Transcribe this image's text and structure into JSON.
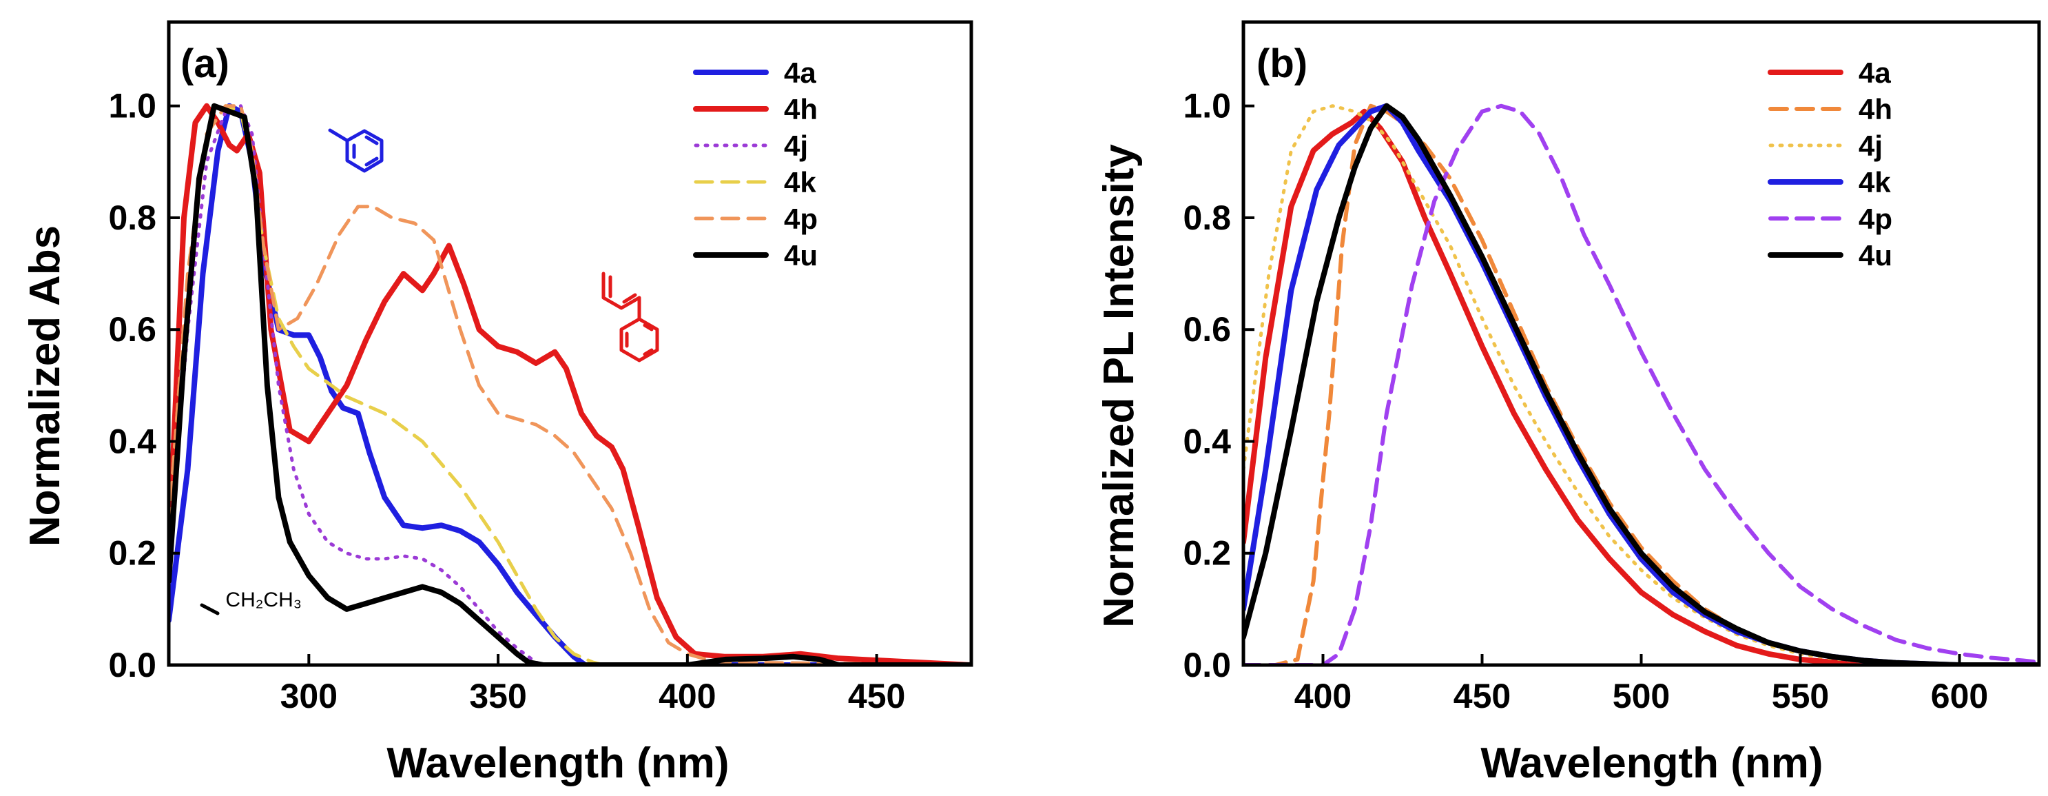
{
  "chart_data": [
    {
      "panel": "(a)",
      "type": "line",
      "title": "",
      "xlabel": "Wavelength (nm)",
      "ylabel": "Normalized Abs",
      "xlim": [
        263,
        475
      ],
      "ylim": [
        0,
        1.15
      ],
      "xticks": [
        300,
        350,
        400,
        450
      ],
      "yticks": [
        0.0,
        0.2,
        0.4,
        0.6,
        0.8,
        1.0
      ],
      "ytick_labels": [
        "0.0",
        "0.2",
        "0.4",
        "0.6",
        "0.8",
        "1.0"
      ],
      "grid": false,
      "legend_position": "top-right",
      "annotations": [
        {
          "text": "CH₂CH₃",
          "x": 278,
          "y": 0.1
        }
      ],
      "series": [
        {
          "name": "4a",
          "color": "#1f1fe0",
          "style": "solid",
          "width": 8,
          "x": [
            263,
            268,
            272,
            276,
            279,
            282,
            285,
            288,
            292,
            296,
            300,
            303,
            306,
            309,
            313,
            316,
            320,
            325,
            330,
            335,
            340,
            345,
            350,
            355,
            360,
            365,
            370,
            373,
            378,
            385,
            400,
            420,
            440,
            475
          ],
          "y": [
            0.08,
            0.35,
            0.7,
            0.92,
            1.0,
            0.99,
            0.9,
            0.72,
            0.6,
            0.59,
            0.59,
            0.55,
            0.49,
            0.46,
            0.45,
            0.38,
            0.3,
            0.25,
            0.245,
            0.25,
            0.24,
            0.22,
            0.18,
            0.13,
            0.09,
            0.05,
            0.015,
            0.0,
            0.0,
            0.0,
            0.0,
            0.0,
            0.0,
            0.0
          ]
        },
        {
          "name": "4h",
          "color": "#e31a1a",
          "style": "solid",
          "width": 8,
          "x": [
            263,
            267,
            270,
            273,
            276,
            279,
            281,
            284,
            287,
            290,
            295,
            300,
            305,
            310,
            315,
            320,
            325,
            330,
            333,
            337,
            341,
            345,
            350,
            355,
            360,
            365,
            368,
            372,
            376,
            380,
            383,
            387,
            392,
            397,
            402,
            410,
            420,
            430,
            440,
            475
          ],
          "y": [
            0.2,
            0.8,
            0.97,
            1.0,
            0.97,
            0.93,
            0.92,
            0.95,
            0.88,
            0.6,
            0.42,
            0.4,
            0.45,
            0.5,
            0.58,
            0.65,
            0.7,
            0.67,
            0.7,
            0.75,
            0.68,
            0.6,
            0.57,
            0.56,
            0.54,
            0.56,
            0.53,
            0.45,
            0.41,
            0.39,
            0.35,
            0.25,
            0.12,
            0.05,
            0.02,
            0.015,
            0.015,
            0.02,
            0.012,
            0.0
          ]
        },
        {
          "name": "4j",
          "color": "#9b3ad6",
          "style": "dotted",
          "width": 5,
          "x": [
            263,
            268,
            273,
            278,
            282,
            285,
            288,
            292,
            296,
            300,
            305,
            310,
            315,
            320,
            325,
            330,
            335,
            340,
            345,
            350,
            355,
            360,
            362,
            475
          ],
          "y": [
            0.2,
            0.6,
            0.9,
            0.99,
            1.0,
            0.95,
            0.75,
            0.5,
            0.35,
            0.27,
            0.22,
            0.2,
            0.19,
            0.19,
            0.195,
            0.19,
            0.17,
            0.14,
            0.1,
            0.06,
            0.03,
            0.005,
            0.0,
            0.0
          ]
        },
        {
          "name": "4k",
          "color": "#e8cf4a",
          "style": "dashed",
          "width": 5,
          "x": [
            263,
            268,
            273,
            278,
            282,
            285,
            288,
            292,
            296,
            300,
            310,
            320,
            330,
            340,
            350,
            355,
            360,
            365,
            370,
            375,
            378,
            475
          ],
          "y": [
            0.25,
            0.7,
            0.95,
            1.0,
            0.99,
            0.9,
            0.75,
            0.62,
            0.57,
            0.53,
            0.48,
            0.45,
            0.4,
            0.32,
            0.22,
            0.16,
            0.1,
            0.05,
            0.02,
            0.005,
            0.0,
            0.0
          ]
        },
        {
          "name": "4p",
          "color": "#f0955a",
          "style": "dashed",
          "width": 5,
          "x": [
            263,
            268,
            273,
            278,
            282,
            285,
            288,
            292,
            297,
            302,
            308,
            313,
            317,
            322,
            328,
            333,
            340,
            345,
            350,
            355,
            360,
            365,
            370,
            375,
            380,
            385,
            390,
            395,
            400,
            405,
            410,
            475
          ],
          "y": [
            0.25,
            0.7,
            0.95,
            1.0,
            1.0,
            0.92,
            0.75,
            0.6,
            0.62,
            0.68,
            0.77,
            0.82,
            0.82,
            0.8,
            0.79,
            0.76,
            0.6,
            0.5,
            0.45,
            0.44,
            0.43,
            0.41,
            0.38,
            0.33,
            0.28,
            0.2,
            0.1,
            0.04,
            0.02,
            0.01,
            0.005,
            0.0
          ]
        },
        {
          "name": "4u",
          "color": "#000000",
          "style": "solid",
          "width": 8,
          "x": [
            263,
            267,
            271,
            275,
            279,
            283,
            286,
            289,
            292,
            295,
            300,
            305,
            310,
            315,
            320,
            325,
            330,
            335,
            340,
            345,
            350,
            355,
            358,
            362,
            400,
            410,
            420,
            428,
            435,
            440,
            475
          ],
          "y": [
            0.15,
            0.55,
            0.87,
            1.0,
            0.99,
            0.98,
            0.85,
            0.5,
            0.3,
            0.22,
            0.16,
            0.12,
            0.1,
            0.11,
            0.12,
            0.13,
            0.14,
            0.13,
            0.11,
            0.08,
            0.05,
            0.02,
            0.005,
            0.0,
            0.0,
            0.01,
            0.012,
            0.015,
            0.01,
            0.0,
            0.0
          ]
        }
      ]
    },
    {
      "panel": "(b)",
      "type": "line",
      "title": "",
      "xlabel": "Wavelength (nm)",
      "ylabel": "Normalized PL Intensity",
      "xlim": [
        375,
        625
      ],
      "ylim": [
        0,
        1.15
      ],
      "xticks": [
        400,
        450,
        500,
        550,
        600
      ],
      "yticks": [
        0.0,
        0.2,
        0.4,
        0.6,
        0.8,
        1.0
      ],
      "ytick_labels": [
        "0.0",
        "0.2",
        "0.4",
        "0.6",
        "0.8",
        "1.0"
      ],
      "grid": false,
      "legend_position": "top-right",
      "series": [
        {
          "name": "4a",
          "color": "#e31a1a",
          "style": "solid",
          "width": 8,
          "x": [
            375,
            382,
            390,
            397,
            403,
            409,
            413,
            418,
            425,
            432,
            440,
            450,
            460,
            470,
            480,
            490,
            500,
            510,
            520,
            530,
            540,
            550,
            560,
            570,
            580,
            600,
            625
          ],
          "y": [
            0.22,
            0.55,
            0.82,
            0.92,
            0.95,
            0.97,
            0.99,
            0.96,
            0.9,
            0.8,
            0.7,
            0.57,
            0.45,
            0.35,
            0.26,
            0.19,
            0.13,
            0.09,
            0.06,
            0.035,
            0.02,
            0.01,
            0.005,
            0.002,
            0.0,
            0.0,
            0.0
          ]
        },
        {
          "name": "4h",
          "color": "#f0883a",
          "style": "dashed",
          "width": 6,
          "x": [
            375,
            385,
            392,
            397,
            402,
            406,
            410,
            415,
            420,
            425,
            432,
            440,
            450,
            460,
            470,
            480,
            490,
            500,
            510,
            520,
            530,
            540,
            550,
            560,
            570,
            580,
            590,
            600,
            625
          ],
          "y": [
            0.0,
            0.0,
            0.01,
            0.15,
            0.45,
            0.75,
            0.93,
            1.0,
            0.99,
            0.97,
            0.93,
            0.87,
            0.76,
            0.63,
            0.5,
            0.39,
            0.29,
            0.21,
            0.15,
            0.1,
            0.065,
            0.04,
            0.025,
            0.015,
            0.008,
            0.004,
            0.002,
            0.001,
            0.0
          ]
        },
        {
          "name": "4j",
          "color": "#f0c24a",
          "style": "dotted",
          "width": 5,
          "x": [
            375,
            383,
            390,
            397,
            403,
            410,
            416,
            422,
            430,
            440,
            450,
            460,
            470,
            480,
            490,
            500,
            510,
            520,
            530,
            540,
            550,
            560,
            570,
            580,
            600,
            625
          ],
          "y": [
            0.35,
            0.7,
            0.92,
            0.99,
            1.0,
            0.99,
            0.97,
            0.93,
            0.85,
            0.75,
            0.62,
            0.5,
            0.4,
            0.31,
            0.23,
            0.17,
            0.12,
            0.085,
            0.055,
            0.035,
            0.02,
            0.012,
            0.006,
            0.003,
            0.0,
            0.0
          ]
        },
        {
          "name": "4k",
          "color": "#1f1fe0",
          "style": "solid",
          "width": 8,
          "x": [
            375,
            382,
            390,
            398,
            405,
            410,
            415,
            420,
            425,
            430,
            440,
            450,
            460,
            470,
            480,
            490,
            500,
            510,
            520,
            530,
            540,
            550,
            560,
            570,
            580,
            600,
            625
          ],
          "y": [
            0.1,
            0.35,
            0.67,
            0.85,
            0.93,
            0.96,
            0.99,
            1.0,
            0.97,
            0.92,
            0.83,
            0.72,
            0.6,
            0.48,
            0.37,
            0.27,
            0.19,
            0.13,
            0.09,
            0.06,
            0.04,
            0.025,
            0.015,
            0.008,
            0.004,
            0.0,
            0.0
          ]
        },
        {
          "name": "4p",
          "color": "#a040f0",
          "style": "dashed",
          "width": 6,
          "x": [
            375,
            395,
            400,
            405,
            410,
            415,
            420,
            428,
            435,
            442,
            450,
            456,
            462,
            468,
            475,
            482,
            490,
            500,
            510,
            520,
            530,
            540,
            550,
            560,
            570,
            580,
            590,
            600,
            610,
            620,
            625
          ],
          "y": [
            0.0,
            0.0,
            0.0,
            0.02,
            0.1,
            0.25,
            0.45,
            0.68,
            0.83,
            0.92,
            0.99,
            1.0,
            0.99,
            0.95,
            0.87,
            0.77,
            0.68,
            0.56,
            0.45,
            0.35,
            0.27,
            0.2,
            0.14,
            0.1,
            0.07,
            0.045,
            0.03,
            0.02,
            0.013,
            0.008,
            0.005
          ]
        },
        {
          "name": "4u",
          "color": "#000000",
          "style": "solid",
          "width": 8,
          "x": [
            375,
            382,
            390,
            398,
            405,
            410,
            415,
            420,
            425,
            430,
            440,
            450,
            460,
            470,
            480,
            490,
            500,
            510,
            520,
            530,
            540,
            550,
            560,
            570,
            580,
            600,
            625
          ],
          "y": [
            0.05,
            0.2,
            0.42,
            0.65,
            0.8,
            0.89,
            0.96,
            1.0,
            0.98,
            0.94,
            0.84,
            0.73,
            0.61,
            0.49,
            0.38,
            0.28,
            0.2,
            0.14,
            0.095,
            0.065,
            0.04,
            0.025,
            0.015,
            0.008,
            0.004,
            0.0,
            0.0
          ]
        }
      ]
    }
  ]
}
